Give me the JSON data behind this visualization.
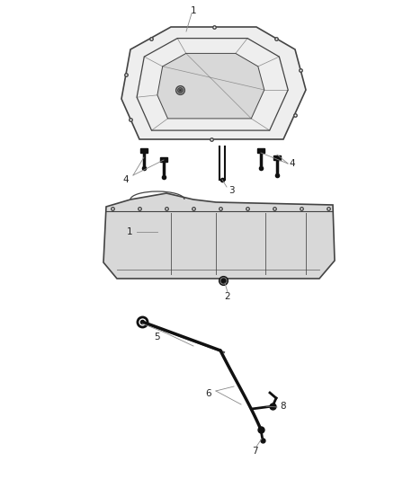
{
  "bg_color": "#ffffff",
  "line_color": "#444444",
  "dark_line": "#111111",
  "gray_fill": "#d8d8d8",
  "light_fill": "#eeeeee",
  "leader_color": "#888888",
  "label_color": "#222222",
  "label_fontsize": 7.5
}
